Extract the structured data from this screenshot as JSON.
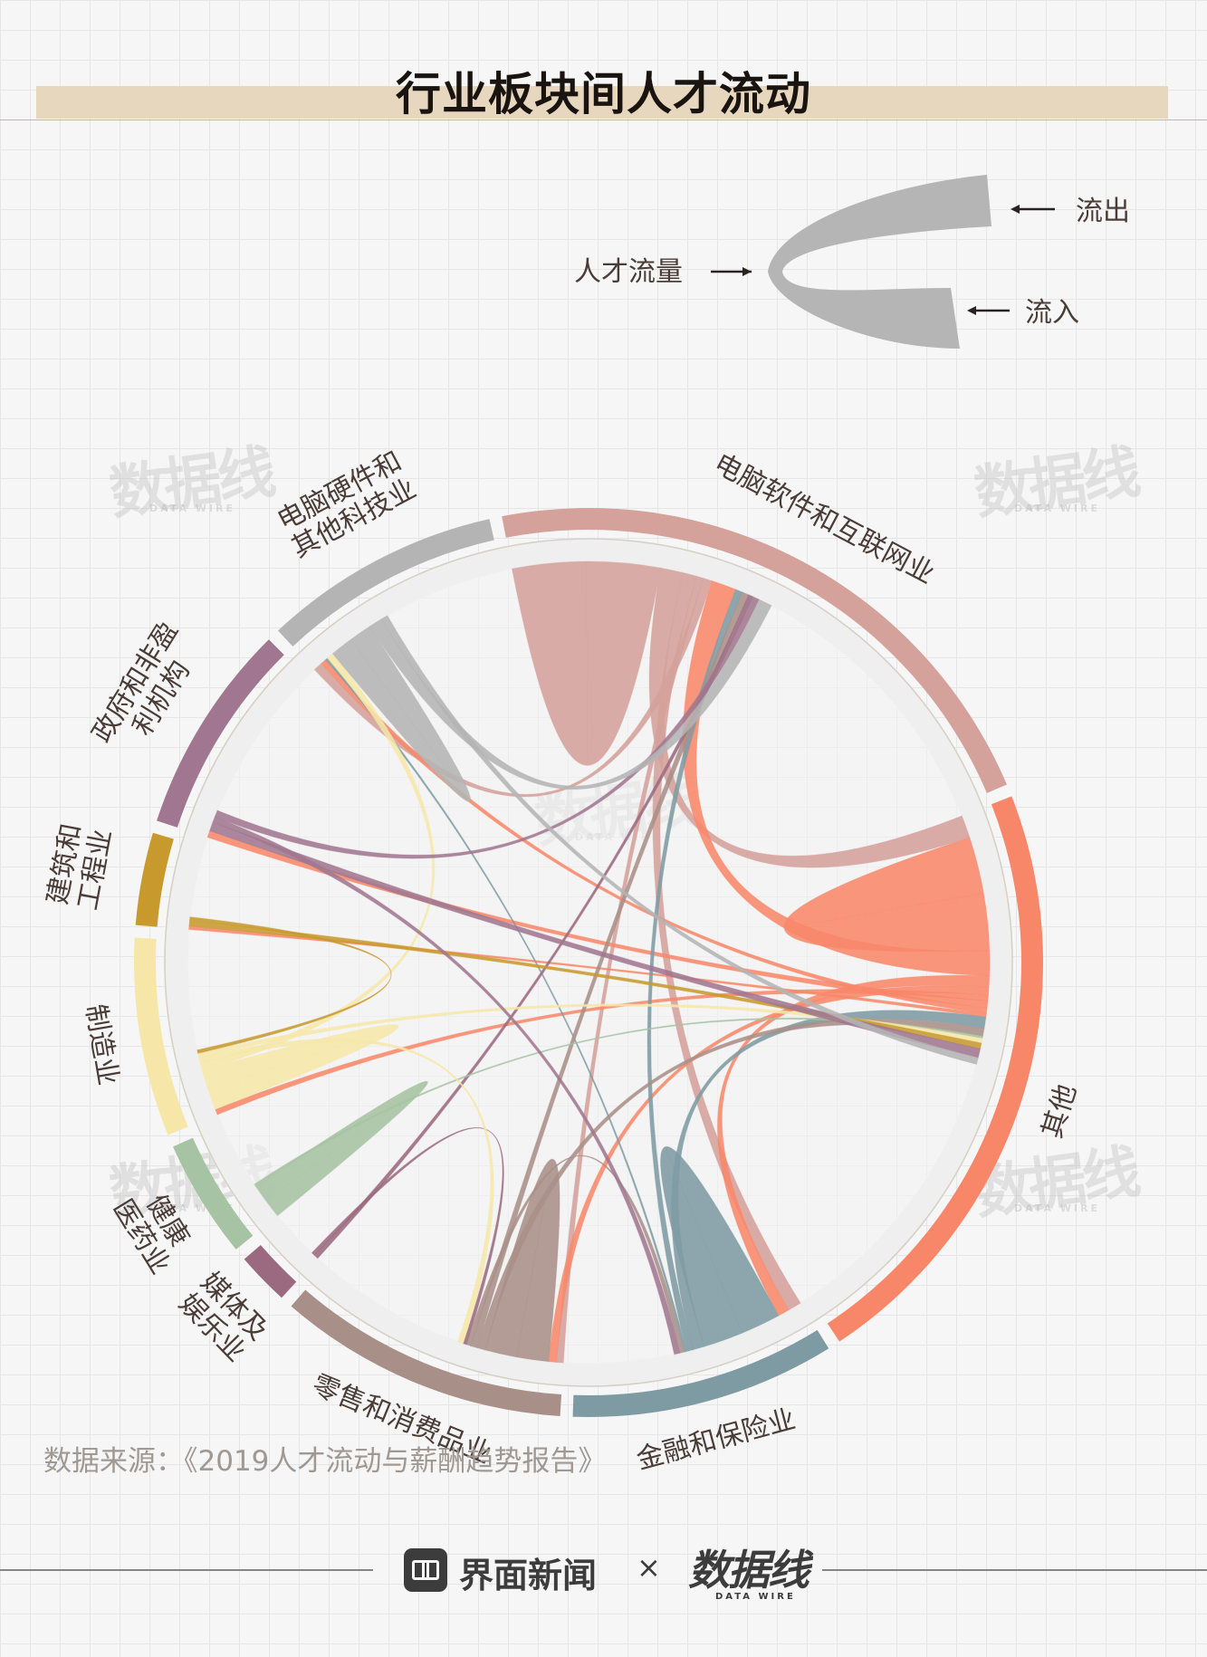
{
  "title": "行业板块间人才流动",
  "legend": {
    "outflow_label": "流出",
    "flow_label": "人才流量",
    "inflow_label": "流入"
  },
  "source": "数据来源：《2019人才流动与薪酬趋势报告》",
  "footer": {
    "brand_name": "界面新闻",
    "times": "×",
    "partner_name": "数据线",
    "partner_sub": "DATA WIRE"
  },
  "watermark": {
    "text": "数据线",
    "sub": "DATA WIRE"
  },
  "chart_data": {
    "type": "chord",
    "title": "行业板块间人才流动",
    "sectors": [
      {
        "name": "电脑软件和互联网业",
        "lines": [
          "电脑软件和互联网业"
        ],
        "color": "#d4a19b",
        "share": 23
      },
      {
        "name": "其他",
        "lines": [
          "其他"
        ],
        "color": "#f8876a",
        "share": 23
      },
      {
        "name": "金融和保险业",
        "lines": [
          "金融和保险业"
        ],
        "color": "#7e9ba3",
        "share": 10
      },
      {
        "name": "零售和消费品业",
        "lines": [
          "零售和消费品业"
        ],
        "color": "#a88f88",
        "share": 11
      },
      {
        "name": "媒体及娱乐业",
        "lines": [
          "媒体及",
          "娱乐业"
        ],
        "color": "#9b6a80",
        "share": 2
      },
      {
        "name": "健康医药业",
        "lines": [
          "健康",
          "医药业"
        ],
        "color": "#a6c3a3",
        "share": 4.5
      },
      {
        "name": "制造业",
        "lines": [
          "制造业"
        ],
        "color": "#f6e7a9",
        "share": 7.5
      },
      {
        "name": "建筑和工程业",
        "lines": [
          "建筑和",
          "工程业"
        ],
        "color": "#c89a2d",
        "share": 3.5
      },
      {
        "name": "政府和非盈利机构",
        "lines": [
          "政府和非盈",
          "利机构"
        ],
        "color": "#a07690",
        "share": 8
      },
      {
        "name": "电脑硬件和其他科技业",
        "lines": [
          "电脑硬件和",
          "其他科技业"
        ],
        "color": "#b4b4b4",
        "share": 9
      }
    ],
    "flows": [
      {
        "from": "电脑软件和互联网业",
        "to": "电脑软件和互联网业",
        "value": 6.5
      },
      {
        "from": "电脑软件和互联网业",
        "to": "其他",
        "value": 2.0
      },
      {
        "from": "电脑软件和互联网业",
        "to": "金融和保险业",
        "value": 1.2
      },
      {
        "from": "电脑软件和互联网业",
        "to": "零售和消费品业",
        "value": 0.6
      },
      {
        "from": "电脑软件和互联网业",
        "to": "电脑硬件和其他科技业",
        "value": 0.8
      },
      {
        "from": "其他",
        "to": "其他",
        "value": 5.0
      },
      {
        "from": "其他",
        "to": "电脑软件和互联网业",
        "value": 2.2
      },
      {
        "from": "其他",
        "to": "金融和保险业",
        "value": 1.0
      },
      {
        "from": "其他",
        "to": "零售和消费品业",
        "value": 0.7
      },
      {
        "from": "其他",
        "to": "制造业",
        "value": 0.5
      },
      {
        "from": "其他",
        "to": "政府和非盈利机构",
        "value": 0.6
      },
      {
        "from": "其他",
        "to": "电脑硬件和其他科技业",
        "value": 0.5
      },
      {
        "from": "其他",
        "to": "建筑和工程业",
        "value": 0.3
      },
      {
        "from": "金融和保险业",
        "to": "金融和保险业",
        "value": 3.5
      },
      {
        "from": "金融和保险业",
        "to": "其他",
        "value": 1.0
      },
      {
        "from": "金融和保险业",
        "to": "电脑软件和互联网业",
        "value": 0.6
      },
      {
        "from": "金融和保险业",
        "to": "电脑硬件和其他科技业",
        "value": 0.2
      },
      {
        "from": "零售和消费品业",
        "to": "零售和消费品业",
        "value": 2.8
      },
      {
        "from": "零售和消费品业",
        "to": "其他",
        "value": 0.7
      },
      {
        "from": "零售和消费品业",
        "to": "电脑软件和互联网业",
        "value": 0.6
      },
      {
        "from": "零售和消费品业",
        "to": "金融和保险业",
        "value": 0.4
      },
      {
        "from": "媒体及娱乐业",
        "to": "电脑软件和互联网业",
        "value": 0.4
      },
      {
        "from": "媒体及娱乐业",
        "to": "零售和消费品业",
        "value": 0.3
      },
      {
        "from": "健康医药业",
        "to": "健康医药业",
        "value": 1.6
      },
      {
        "from": "健康医药业",
        "to": "其他",
        "value": 0.2
      },
      {
        "from": "制造业",
        "to": "制造业",
        "value": 1.8
      },
      {
        "from": "制造业",
        "to": "电脑硬件和其他科技业",
        "value": 0.6
      },
      {
        "from": "制造业",
        "to": "零售和消费品业",
        "value": 0.5
      },
      {
        "from": "制造业",
        "to": "其他",
        "value": 0.4
      },
      {
        "from": "建筑和工程业",
        "to": "其他",
        "value": 0.5
      },
      {
        "from": "建筑和工程业",
        "to": "制造业",
        "value": 0.3
      },
      {
        "from": "政府和非盈利机构",
        "to": "其他",
        "value": 0.8
      },
      {
        "from": "政府和非盈利机构",
        "to": "金融和保险业",
        "value": 0.5
      },
      {
        "from": "政府和非盈利机构",
        "to": "电脑软件和互联网业",
        "value": 0.6
      },
      {
        "from": "电脑硬件和其他科技业",
        "to": "电脑硬件和其他科技业",
        "value": 2.0
      },
      {
        "from": "电脑硬件和其他科技业",
        "to": "电脑软件和互联网业",
        "value": 1.2
      },
      {
        "from": "电脑硬件和其他科技业",
        "to": "其他",
        "value": 0.6
      }
    ]
  }
}
